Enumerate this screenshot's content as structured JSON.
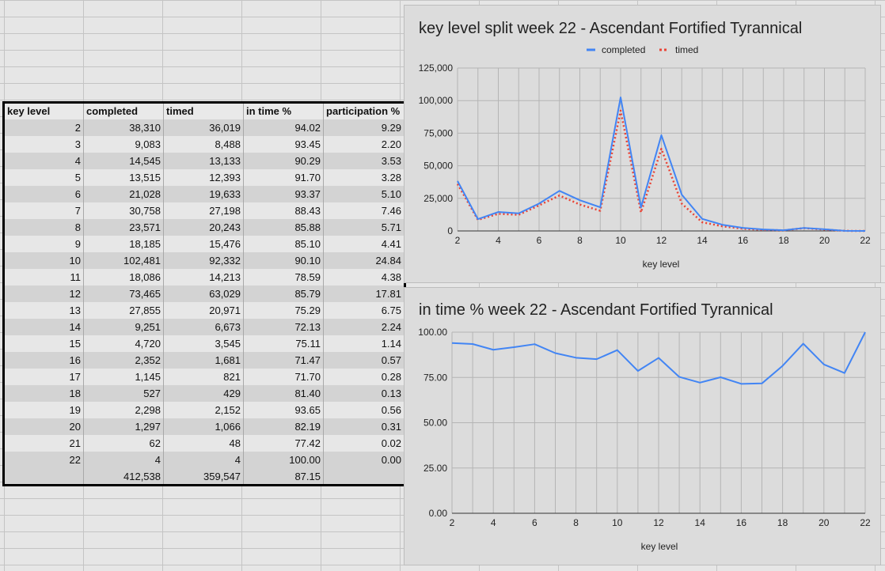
{
  "table": {
    "headers": [
      "key level",
      "completed",
      "timed",
      "in time %",
      "participation %"
    ],
    "rows": [
      [
        "2",
        "38,310",
        "36,019",
        "94.02",
        "9.29"
      ],
      [
        "3",
        "9,083",
        "8,488",
        "93.45",
        "2.20"
      ],
      [
        "4",
        "14,545",
        "13,133",
        "90.29",
        "3.53"
      ],
      [
        "5",
        "13,515",
        "12,393",
        "91.70",
        "3.28"
      ],
      [
        "6",
        "21,028",
        "19,633",
        "93.37",
        "5.10"
      ],
      [
        "7",
        "30,758",
        "27,198",
        "88.43",
        "7.46"
      ],
      [
        "8",
        "23,571",
        "20,243",
        "85.88",
        "5.71"
      ],
      [
        "9",
        "18,185",
        "15,476",
        "85.10",
        "4.41"
      ],
      [
        "10",
        "102,481",
        "92,332",
        "90.10",
        "24.84"
      ],
      [
        "11",
        "18,086",
        "14,213",
        "78.59",
        "4.38"
      ],
      [
        "12",
        "73,465",
        "63,029",
        "85.79",
        "17.81"
      ],
      [
        "13",
        "27,855",
        "20,971",
        "75.29",
        "6.75"
      ],
      [
        "14",
        "9,251",
        "6,673",
        "72.13",
        "2.24"
      ],
      [
        "15",
        "4,720",
        "3,545",
        "75.11",
        "1.14"
      ],
      [
        "16",
        "2,352",
        "1,681",
        "71.47",
        "0.57"
      ],
      [
        "17",
        "1,145",
        "821",
        "71.70",
        "0.28"
      ],
      [
        "18",
        "527",
        "429",
        "81.40",
        "0.13"
      ],
      [
        "19",
        "2,298",
        "2,152",
        "93.65",
        "0.56"
      ],
      [
        "20",
        "1,297",
        "1,066",
        "82.19",
        "0.31"
      ],
      [
        "21",
        "62",
        "48",
        "77.42",
        "0.02"
      ],
      [
        "22",
        "4",
        "4",
        "100.00",
        "0.00"
      ]
    ],
    "total": [
      "",
      "412,538",
      "359,547",
      "87.15",
      ""
    ]
  },
  "chart_data": [
    {
      "type": "line",
      "title": "key level split week 22 - Ascendant Fortified Tyrannical",
      "xlabel": "key level",
      "ylabel": "",
      "x": [
        2,
        3,
        4,
        5,
        6,
        7,
        8,
        9,
        10,
        11,
        12,
        13,
        14,
        15,
        16,
        17,
        18,
        19,
        20,
        21,
        22
      ],
      "xticks": [
        2,
        4,
        6,
        8,
        10,
        12,
        14,
        16,
        18,
        20,
        22
      ],
      "yticks": [
        0,
        25000,
        50000,
        75000,
        100000,
        125000
      ],
      "ytick_labels": [
        "0",
        "25,000",
        "50,000",
        "75,000",
        "100,000",
        "125,000"
      ],
      "ylim": [
        0,
        125000
      ],
      "grid": true,
      "legend": "top",
      "series": [
        {
          "name": "completed",
          "color": "#4285f4",
          "style": "solid",
          "values": [
            38310,
            9083,
            14545,
            13515,
            21028,
            30758,
            23571,
            18185,
            102481,
            18086,
            73465,
            27855,
            9251,
            4720,
            2352,
            1145,
            527,
            2298,
            1297,
            62,
            4
          ]
        },
        {
          "name": "timed",
          "color": "#ea4335",
          "style": "dotted",
          "values": [
            36019,
            8488,
            13133,
            12393,
            19633,
            27198,
            20243,
            15476,
            92332,
            14213,
            63029,
            20971,
            6673,
            3545,
            1681,
            821,
            429,
            2152,
            1066,
            48,
            4
          ]
        }
      ]
    },
    {
      "type": "line",
      "title": "in time % week 22 - Ascendant Fortified Tyrannical",
      "xlabel": "key level",
      "ylabel": "",
      "x": [
        2,
        3,
        4,
        5,
        6,
        7,
        8,
        9,
        10,
        11,
        12,
        13,
        14,
        15,
        16,
        17,
        18,
        19,
        20,
        21,
        22
      ],
      "xticks": [
        2,
        4,
        6,
        8,
        10,
        12,
        14,
        16,
        18,
        20,
        22
      ],
      "yticks": [
        0,
        25,
        50,
        75,
        100
      ],
      "ytick_labels": [
        "0.00",
        "25.00",
        "50.00",
        "75.00",
        "100.00"
      ],
      "ylim": [
        0,
        100
      ],
      "grid": true,
      "legend": "none",
      "series": [
        {
          "color": "#4285f4",
          "style": "solid",
          "values": [
            94.02,
            93.45,
            90.29,
            91.7,
            93.37,
            88.43,
            85.88,
            85.1,
            90.1,
            78.59,
            85.79,
            75.29,
            72.13,
            75.11,
            71.47,
            71.7,
            81.4,
            93.65,
            82.19,
            77.42,
            100.0
          ]
        }
      ]
    }
  ]
}
